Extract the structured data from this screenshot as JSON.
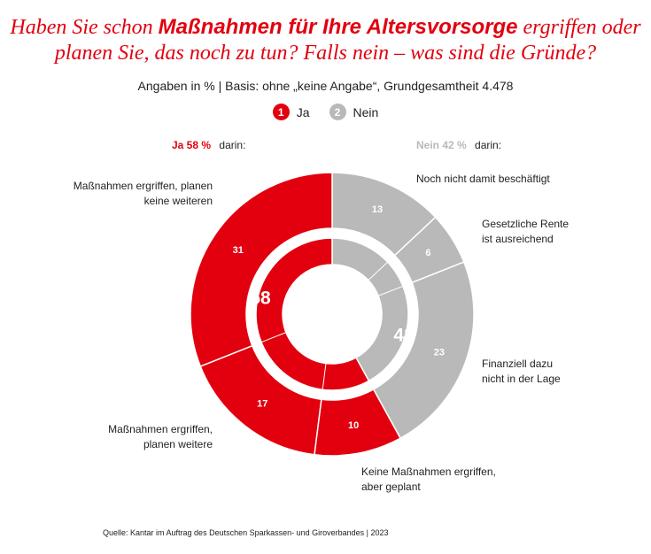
{
  "title": {
    "part1": "Haben Sie schon ",
    "bold": "Maßnahmen für Ihre Altersvorsorge",
    "part2": " ergriffen oder",
    "line2": "planen Sie, das noch zu tun? Falls nein – was sind die Gründe?"
  },
  "subtitle": "Angaben in % | Basis: ohne „keine Angabe“, Grundgesamtheit 4.478",
  "legend": [
    {
      "marker": "1",
      "label": "Ja",
      "color": "#e2000f"
    },
    {
      "marker": "2",
      "label": "Nein",
      "color": "#b9b9b9"
    }
  ],
  "groups": {
    "ja": {
      "pct": "Ja 58 %",
      "suffix": "darin:"
    },
    "nein": {
      "pct": "Nein 42 %",
      "suffix": "darin:"
    }
  },
  "source": "Quelle: Kantar im Auftrag des Deutschen Sparkassen- und Giroverbandes | 2023",
  "colors": {
    "ja": "#e2000f",
    "nein": "#b9b9b9",
    "ja_label": "#e2000f",
    "nein_label": "#b9b9b9"
  },
  "chart_data": {
    "type": "pie",
    "title": "Haben Sie schon Maßnahmen für Ihre Altersvorsorge ergriffen oder planen Sie, das noch zu tun? Falls nein – was sind die Gründe?",
    "unit": "%",
    "inner": [
      {
        "name": "Ja",
        "value": 58,
        "label": "58"
      },
      {
        "name": "Nein",
        "value": 42,
        "label": "42"
      }
    ],
    "outer": [
      {
        "name": "Noch nicht damit beschäftigt",
        "value": 13,
        "label": "13",
        "group": "Nein"
      },
      {
        "name": "Gesetzliche Rente ist ausreichend",
        "value": 6,
        "label": "6",
        "group": "Nein"
      },
      {
        "name": "Finanziell dazu nicht in der Lage",
        "value": 23,
        "label": "23",
        "group": "Nein"
      },
      {
        "name": "Keine Maßnahmen ergriffen, aber geplant",
        "value": 10,
        "label": "10",
        "group": "Ja"
      },
      {
        "name": "Maßnahmen ergriffen, planen weitere",
        "value": 17,
        "label": "17",
        "group": "Ja"
      },
      {
        "name": "Maßnahmen ergriffen, planen keine weiteren",
        "value": 31,
        "label": "31",
        "group": "Ja"
      }
    ],
    "segment_labels": {
      "s13": [
        "Noch nicht damit beschäftigt"
      ],
      "s6": [
        "Gesetzliche Rente",
        "ist ausreichend"
      ],
      "s23": [
        "Finanziell dazu",
        "nicht in der Lage"
      ],
      "s10": [
        "Keine Maßnahmen ergriffen,",
        "aber geplant"
      ],
      "s17": [
        "Maßnahmen ergriffen,",
        "planen weitere"
      ],
      "s31": [
        "Maßnahmen ergriffen, planen",
        "keine weiteren"
      ]
    }
  }
}
